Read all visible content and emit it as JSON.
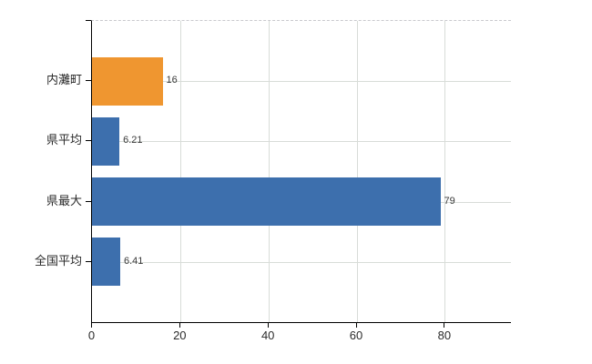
{
  "chart_data": {
    "type": "bar",
    "orientation": "horizontal",
    "title": "",
    "categories": [
      "内灘町",
      "県平均",
      "県最大",
      "全国平均"
    ],
    "values": [
      16,
      6.21,
      79,
      6.41
    ],
    "value_labels": [
      "16",
      "6.21",
      "79",
      "6.41"
    ],
    "bar_colors": [
      "#ef9630",
      "#3d6fad",
      "#3d6fad",
      "#3d6fad"
    ],
    "xlim": [
      0,
      95
    ],
    "x_ticks": [
      0,
      20,
      40,
      60,
      80
    ],
    "x_tick_labels": [
      "0",
      "20",
      "40",
      "60",
      "80"
    ],
    "grid": "on",
    "legend": "none"
  },
  "colors": {
    "bar_orange": "#ef9630",
    "bar_blue": "#3d6fad",
    "gridline": "#d8dcd8",
    "plot_top_border": "#c9c9cd",
    "axis": "#000000",
    "background": "#ffffff",
    "label_text": "#2b2b2b",
    "value_text": "#3a3a3a"
  }
}
